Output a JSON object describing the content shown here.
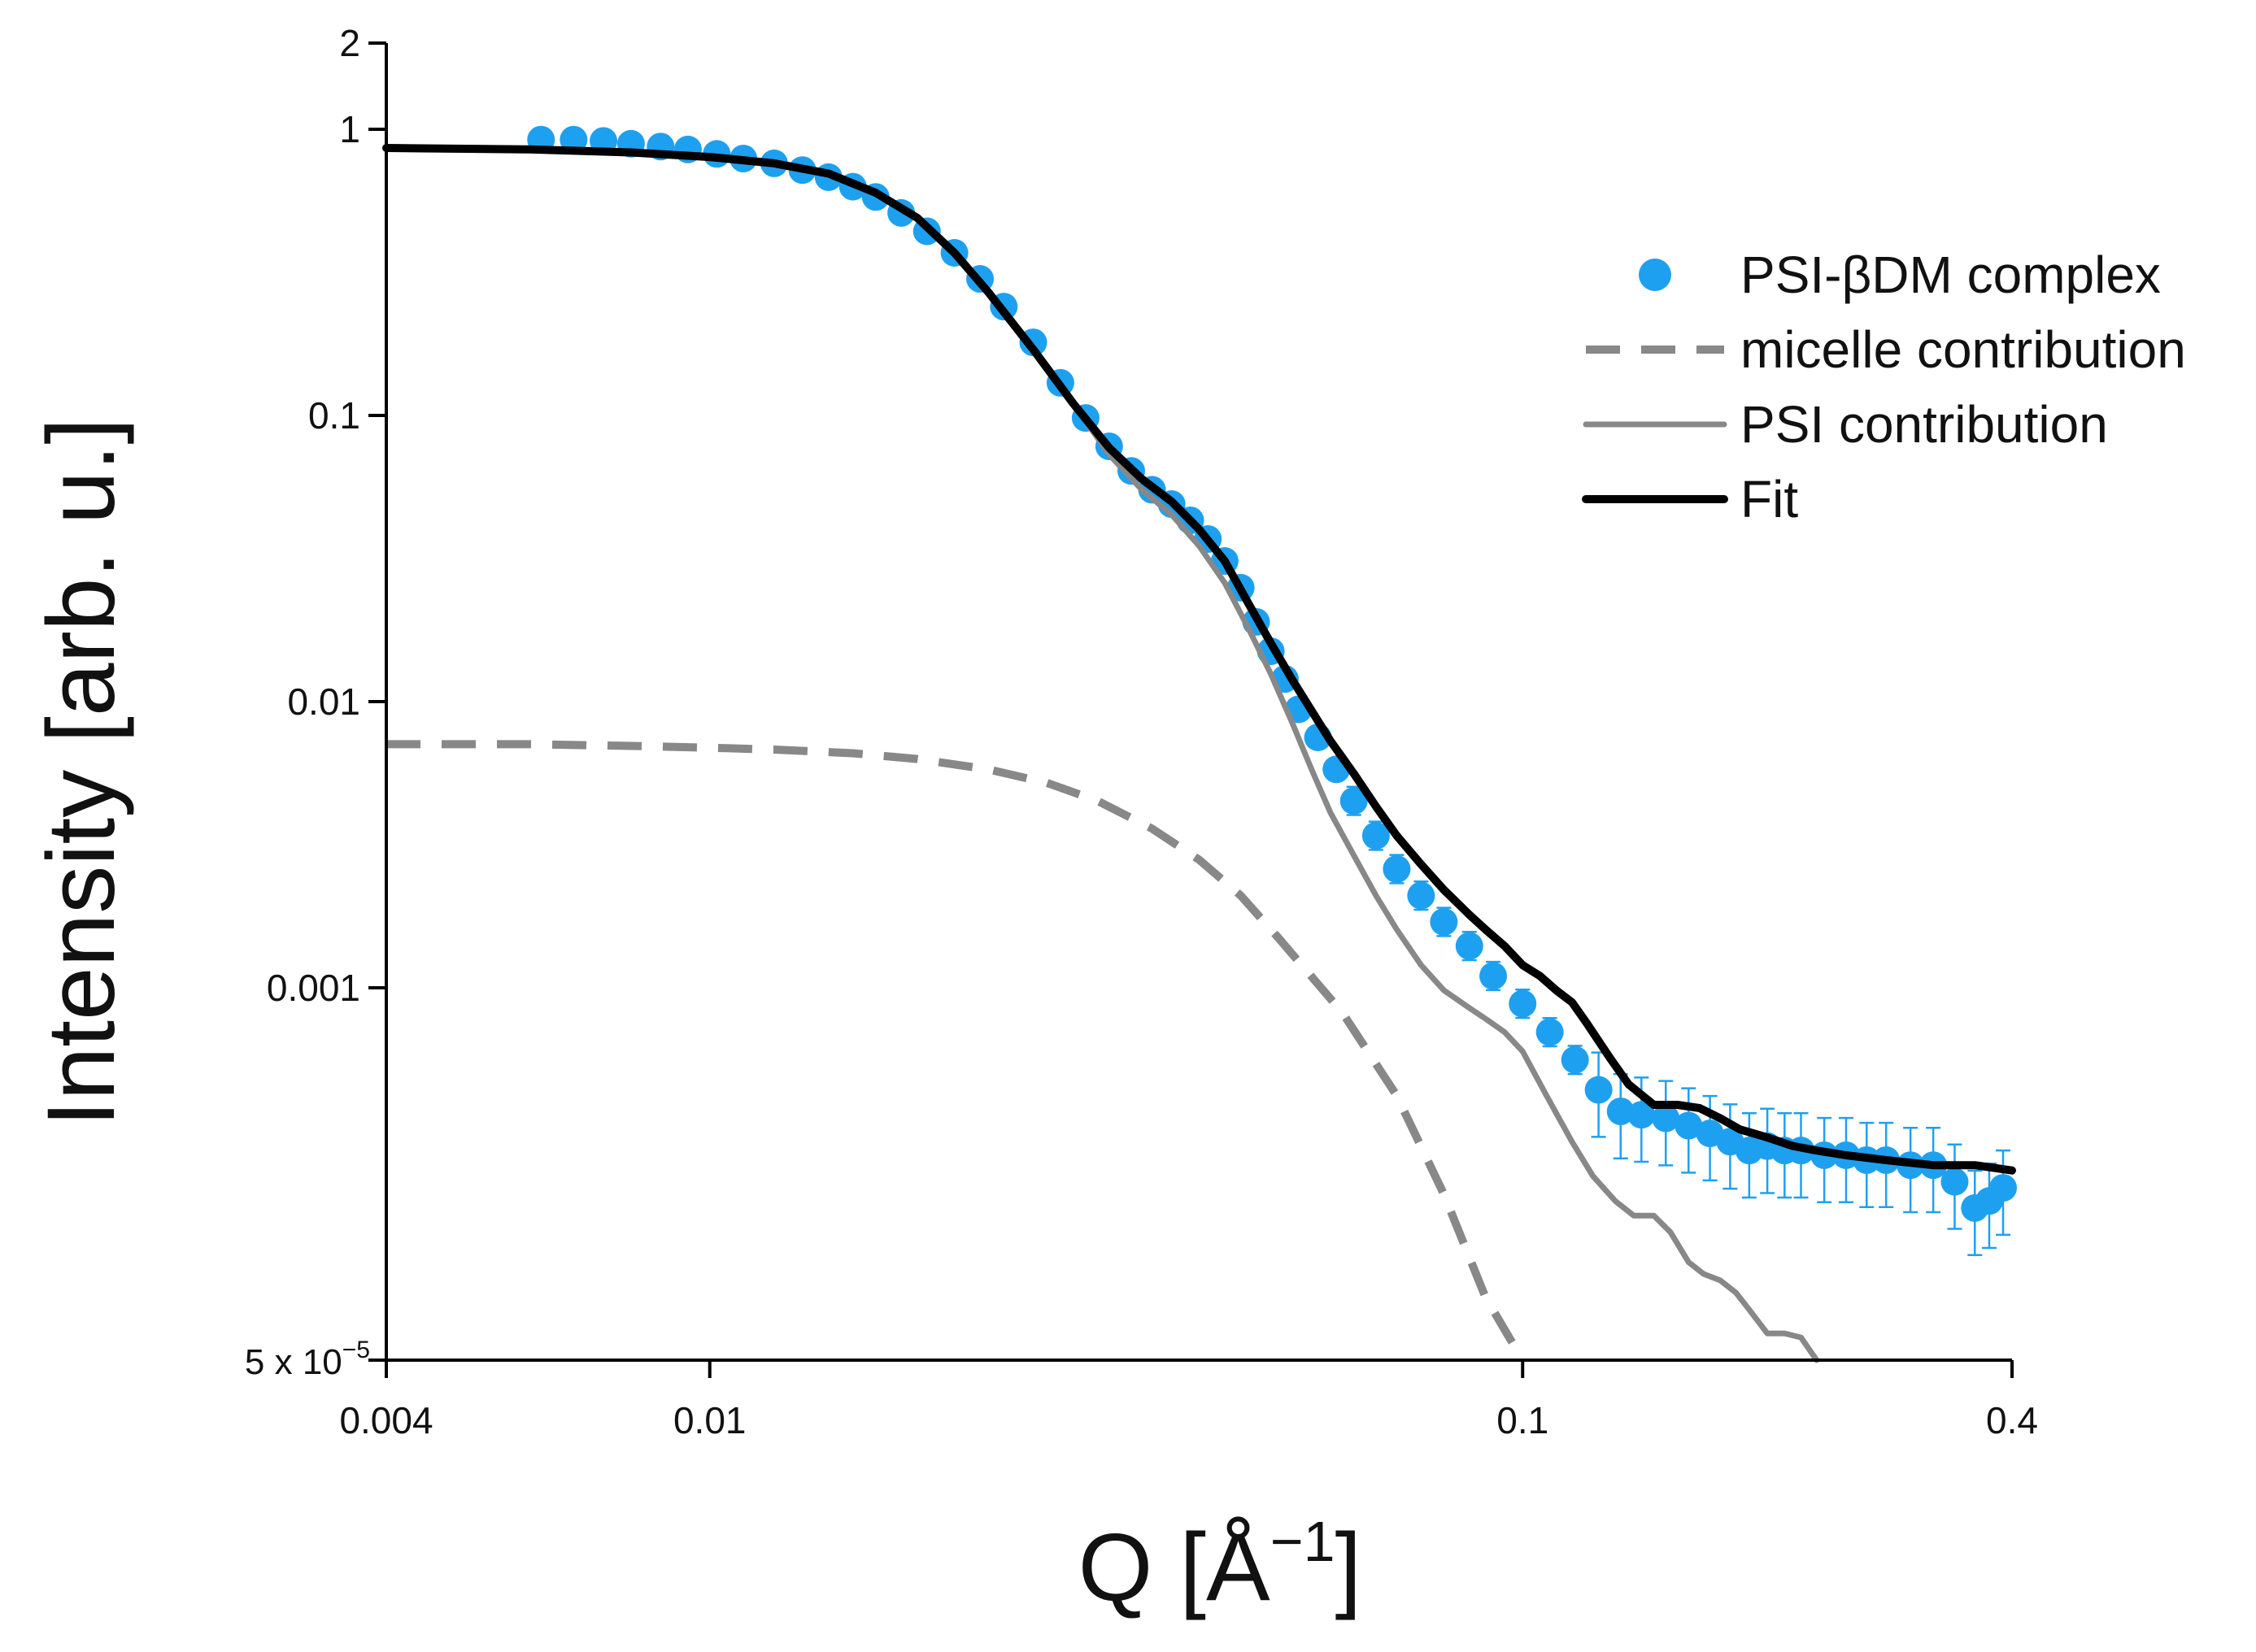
{
  "chart_data": {
    "type": "line",
    "title": "",
    "xlabel": "Q [Å",
    "xlabel_sup": "−1",
    "xlabel_close": "]",
    "ylabel": "Intensity [arb. u.]",
    "xscale": "log",
    "yscale": "log",
    "xlim": [
      0.004,
      0.4
    ],
    "ylim": [
      5e-05,
      2
    ],
    "x_ticks": [
      {
        "value": 0.004,
        "label": "0.004"
      },
      {
        "value": 0.01,
        "label": "0.01"
      },
      {
        "value": 0.1,
        "label": "0.1"
      },
      {
        "value": 0.4,
        "label": "0.4"
      }
    ],
    "y_ticks": [
      {
        "value": 2,
        "label": "2"
      },
      {
        "value": 1,
        "label": "1"
      },
      {
        "value": 0.1,
        "label": "0.1"
      },
      {
        "value": 0.01,
        "label": "0.01"
      },
      {
        "value": 0.001,
        "label": "0.001"
      }
    ],
    "y_min_label": {
      "base": "5 x 10",
      "exp": "−5"
    },
    "legend_position": "top-right",
    "series": [
      {
        "name": "PSI-βDM complex",
        "style": "points-errorbars",
        "color": "#1ea0f0",
        "points": [
          [
            0.0062,
            0.92
          ],
          [
            0.0068,
            0.92
          ],
          [
            0.0074,
            0.91
          ],
          [
            0.008,
            0.89
          ],
          [
            0.0087,
            0.87
          ],
          [
            0.0094,
            0.85
          ],
          [
            0.0102,
            0.82
          ],
          [
            0.011,
            0.79
          ],
          [
            0.012,
            0.76
          ],
          [
            0.013,
            0.72
          ],
          [
            0.014,
            0.68
          ],
          [
            0.015,
            0.63
          ],
          [
            0.016,
            0.58
          ],
          [
            0.0172,
            0.51
          ],
          [
            0.0185,
            0.44
          ],
          [
            0.02,
            0.37
          ],
          [
            0.0215,
            0.3
          ],
          [
            0.023,
            0.24
          ],
          [
            0.025,
            0.18
          ],
          [
            0.027,
            0.13
          ],
          [
            0.029,
            0.098
          ],
          [
            0.031,
            0.078
          ],
          [
            0.033,
            0.064
          ],
          [
            0.035,
            0.055
          ],
          [
            0.037,
            0.049
          ],
          [
            0.039,
            0.043
          ],
          [
            0.041,
            0.037
          ],
          [
            0.043,
            0.031
          ],
          [
            0.045,
            0.025
          ],
          [
            0.047,
            0.019
          ],
          [
            0.049,
            0.015
          ],
          [
            0.051,
            0.012
          ],
          [
            0.053,
            0.0094
          ],
          [
            0.056,
            0.0075
          ],
          [
            0.059,
            0.0058
          ],
          [
            0.062,
            0.0045
          ],
          [
            0.066,
            0.0034
          ],
          [
            0.07,
            0.0026
          ],
          [
            0.075,
            0.0021
          ],
          [
            0.08,
            0.0017
          ],
          [
            0.086,
            0.0014
          ],
          [
            0.092,
            0.0011
          ],
          [
            0.1,
            0.00088
          ],
          [
            0.108,
            0.0007
          ],
          [
            0.116,
            0.00056
          ],
          [
            0.124,
            0.00044
          ],
          [
            0.132,
            0.00037
          ],
          [
            0.14,
            0.00036
          ],
          [
            0.15,
            0.00035
          ],
          [
            0.16,
            0.00033
          ],
          [
            0.17,
            0.00031
          ],
          [
            0.18,
            0.00029
          ],
          [
            0.19,
            0.00027
          ],
          [
            0.2,
            0.00028
          ],
          [
            0.21,
            0.00027
          ],
          [
            0.22,
            0.00027
          ],
          [
            0.235,
            0.00026
          ],
          [
            0.25,
            0.00026
          ],
          [
            0.265,
            0.00025
          ],
          [
            0.28,
            0.00025
          ],
          [
            0.3,
            0.00024
          ],
          [
            0.32,
            0.00024
          ],
          [
            0.34,
            0.00021
          ],
          [
            0.36,
            0.00017
          ],
          [
            0.375,
            0.00018
          ],
          [
            0.39,
            0.0002
          ]
        ]
      },
      {
        "name": "micelle contribution",
        "style": "dashed",
        "color": "#888888",
        "points": [
          [
            0.004,
            0.0071
          ],
          [
            0.006,
            0.0071
          ],
          [
            0.008,
            0.007
          ],
          [
            0.01,
            0.0069
          ],
          [
            0.012,
            0.0068
          ],
          [
            0.015,
            0.0066
          ],
          [
            0.018,
            0.0063
          ],
          [
            0.022,
            0.0058
          ],
          [
            0.026,
            0.0052
          ],
          [
            0.03,
            0.0045
          ],
          [
            0.035,
            0.0036
          ],
          [
            0.04,
            0.0028
          ],
          [
            0.045,
            0.0021
          ],
          [
            0.05,
            0.0015
          ],
          [
            0.06,
            0.00082
          ],
          [
            0.07,
            0.00042
          ],
          [
            0.08,
            0.00019
          ],
          [
            0.09,
            8.3e-05
          ],
          [
            0.1,
            5e-05
          ]
        ]
      },
      {
        "name": "PSI contribution",
        "style": "solid",
        "color": "#888888",
        "points": [
          [
            0.004,
            0.86
          ],
          [
            0.006,
            0.85
          ],
          [
            0.008,
            0.83
          ],
          [
            0.01,
            0.8
          ],
          [
            0.012,
            0.76
          ],
          [
            0.014,
            0.7
          ],
          [
            0.016,
            0.6
          ],
          [
            0.018,
            0.49
          ],
          [
            0.02,
            0.37
          ],
          [
            0.022,
            0.27
          ],
          [
            0.025,
            0.17
          ],
          [
            0.028,
            0.11
          ],
          [
            0.031,
            0.073
          ],
          [
            0.034,
            0.055
          ],
          [
            0.037,
            0.045
          ],
          [
            0.04,
            0.035
          ],
          [
            0.043,
            0.026
          ],
          [
            0.046,
            0.018
          ],
          [
            0.049,
            0.0125
          ],
          [
            0.052,
            0.0085
          ],
          [
            0.055,
            0.0058
          ],
          [
            0.058,
            0.0041
          ],
          [
            0.062,
            0.0029
          ],
          [
            0.066,
            0.0021
          ],
          [
            0.07,
            0.0016
          ],
          [
            0.075,
            0.0012
          ],
          [
            0.08,
            0.00098
          ],
          [
            0.086,
            0.00085
          ],
          [
            0.09,
            0.00078
          ],
          [
            0.095,
            0.0007
          ],
          [
            0.1,
            0.0006
          ],
          [
            0.107,
            0.00042
          ],
          [
            0.115,
            0.00029
          ],
          [
            0.122,
            0.00022
          ],
          [
            0.13,
            0.00018
          ],
          [
            0.137,
            0.00016
          ],
          [
            0.145,
            0.00016
          ],
          [
            0.152,
            0.00014
          ],
          [
            0.16,
            0.00011
          ],
          [
            0.167,
            0.0001
          ],
          [
            0.175,
            9.5e-05
          ],
          [
            0.183,
            8.6e-05
          ],
          [
            0.19,
            7.5e-05
          ],
          [
            0.2,
            6.2e-05
          ],
          [
            0.21,
            6.2e-05
          ],
          [
            0.22,
            6e-05
          ],
          [
            0.23,
            5e-05
          ]
        ]
      },
      {
        "name": "Fit",
        "style": "solid-thick",
        "color": "#000000",
        "points": [
          [
            0.004,
            0.86
          ],
          [
            0.006,
            0.85
          ],
          [
            0.008,
            0.83
          ],
          [
            0.01,
            0.8
          ],
          [
            0.012,
            0.76
          ],
          [
            0.014,
            0.7
          ],
          [
            0.016,
            0.6
          ],
          [
            0.018,
            0.49
          ],
          [
            0.02,
            0.37
          ],
          [
            0.022,
            0.27
          ],
          [
            0.025,
            0.17
          ],
          [
            0.028,
            0.11
          ],
          [
            0.031,
            0.077
          ],
          [
            0.034,
            0.06
          ],
          [
            0.037,
            0.05
          ],
          [
            0.04,
            0.04
          ],
          [
            0.043,
            0.031
          ],
          [
            0.046,
            0.022
          ],
          [
            0.049,
            0.016
          ],
          [
            0.052,
            0.012
          ],
          [
            0.055,
            0.0093
          ],
          [
            0.058,
            0.0073
          ],
          [
            0.062,
            0.0056
          ],
          [
            0.066,
            0.0043
          ],
          [
            0.07,
            0.0034
          ],
          [
            0.075,
            0.0027
          ],
          [
            0.08,
            0.0022
          ],
          [
            0.086,
            0.0018
          ],
          [
            0.09,
            0.0016
          ],
          [
            0.095,
            0.0014
          ],
          [
            0.1,
            0.0012
          ],
          [
            0.105,
            0.0011
          ],
          [
            0.11,
            0.00098
          ],
          [
            0.115,
            0.00089
          ],
          [
            0.12,
            0.00075
          ],
          [
            0.128,
            0.00057
          ],
          [
            0.135,
            0.00046
          ],
          [
            0.145,
            0.00039
          ],
          [
            0.155,
            0.00039
          ],
          [
            0.165,
            0.00038
          ],
          [
            0.175,
            0.00035
          ],
          [
            0.185,
            0.00032
          ],
          [
            0.2,
            0.0003
          ],
          [
            0.215,
            0.00028
          ],
          [
            0.23,
            0.00027
          ],
          [
            0.25,
            0.00026
          ],
          [
            0.28,
            0.00025
          ],
          [
            0.32,
            0.00024
          ],
          [
            0.36,
            0.00024
          ],
          [
            0.4,
            0.00023
          ]
        ]
      }
    ]
  }
}
